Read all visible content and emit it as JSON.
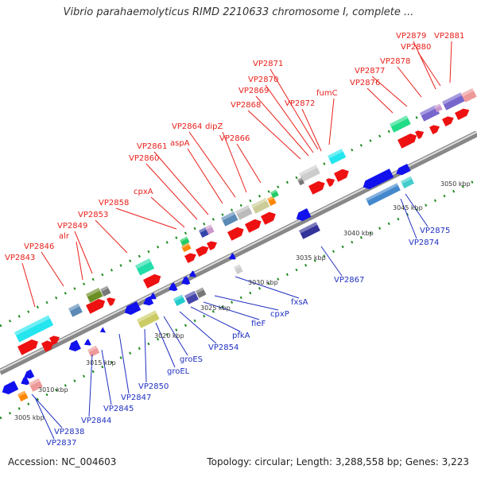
{
  "title": "Vibrio parahaemolyticus RIMD 2210633 chromosome I, complete ...",
  "footer": {
    "accession": "Accession: NC_004603",
    "summary": "Topology: circular; Length: 3,288,558 bp; Genes: 3,223"
  },
  "colors": {
    "forward_label": "#e8201a",
    "reverse_label": "#2030c0",
    "forward_gene": "#ee1111",
    "reverse_gene": "#1111ee",
    "backbone": "#888888",
    "tick": "#228b22"
  },
  "kbp_labels": [
    "3005 kbp",
    "3010 kbp",
    "3015 kbp",
    "3020 kbp",
    "3025 kbp",
    "3030 kbp",
    "3035 kbp",
    "3040 kbp",
    "3045 kbp",
    "3050 kbp"
  ],
  "forward_genes": [
    "VP2843",
    "VP2846",
    "alr",
    "VP2849",
    "VP2853",
    "VP2858",
    "cpxA",
    "VP2860",
    "VP2861",
    "aspA",
    "VP2864",
    "dipZ",
    "VP2866",
    "VP2868",
    "VP2869",
    "VP2870",
    "VP2871",
    "VP2872",
    "fumC",
    "VP2876",
    "VP2877",
    "VP2878",
    "VP2879",
    "VP2880",
    "VP2881"
  ],
  "reverse_genes": [
    "VP2837",
    "VP2838",
    "VP2844",
    "VP2845",
    "VP2847",
    "VP2850",
    "groEL",
    "groES",
    "VP2854",
    "pfkA",
    "fieF",
    "cpxP",
    "fxsA",
    "VP2867",
    "VP2874",
    "VP2875"
  ]
}
